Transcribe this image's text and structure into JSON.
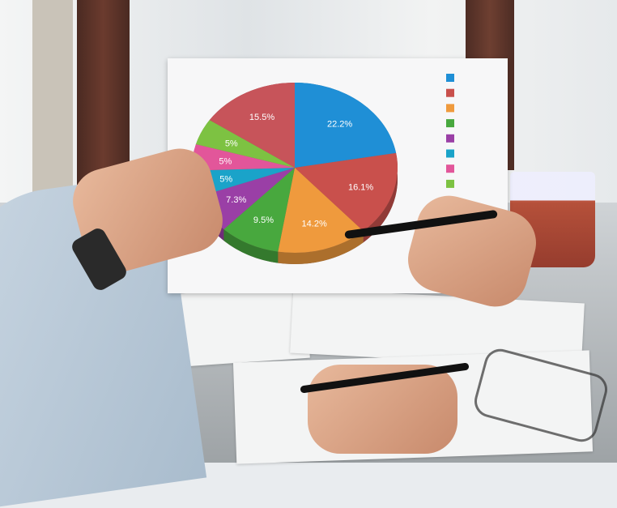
{
  "chart_data": {
    "type": "pie",
    "values": [
      22.2,
      16.1,
      14.2,
      9.5,
      7.3,
      5,
      5,
      5,
      15.5
    ],
    "labels": [
      "22.2%",
      "16.1%",
      "14.2%",
      "9.5%",
      "7.3%",
      "5%",
      "5%",
      "5%",
      "15.5%"
    ],
    "colors": [
      "#1f8fd6",
      "#c9504c",
      "#ef9a3d",
      "#48a83e",
      "#9a3fa6",
      "#1aa3c9",
      "#e2569a",
      "#7dc242",
      "#c7545a"
    ],
    "legend_colors": [
      "#1f8fd6",
      "#c9504c",
      "#ef9a3d",
      "#48a83e",
      "#9a3fa6",
      "#1aa3c9",
      "#e2569a",
      "#7dc242"
    ],
    "legend": "right"
  }
}
